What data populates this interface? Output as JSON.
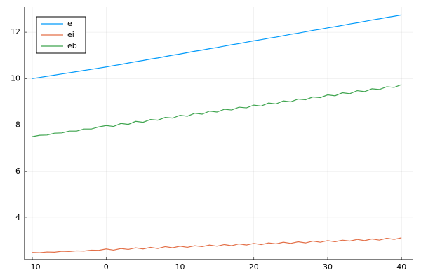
{
  "chart_data": {
    "type": "line",
    "x": [
      -10,
      -9,
      -8,
      -7,
      -6,
      -5,
      -4,
      -3,
      -2,
      -1,
      0,
      1,
      2,
      3,
      4,
      5,
      6,
      7,
      8,
      9,
      10,
      11,
      12,
      13,
      14,
      15,
      16,
      17,
      18,
      19,
      20,
      21,
      22,
      23,
      24,
      25,
      26,
      27,
      28,
      29,
      30,
      31,
      32,
      33,
      34,
      35,
      36,
      37,
      38,
      39,
      40
    ],
    "series": [
      {
        "name": "e",
        "color": "#009afa",
        "values": [
          10.0,
          10.05,
          10.1,
          10.15,
          10.2,
          10.25,
          10.3,
          10.35,
          10.4,
          10.45,
          10.5,
          10.56,
          10.61,
          10.67,
          10.73,
          10.78,
          10.84,
          10.89,
          10.95,
          11.01,
          11.06,
          11.12,
          11.18,
          11.23,
          11.29,
          11.34,
          11.4,
          11.46,
          11.51,
          11.57,
          11.63,
          11.68,
          11.74,
          11.79,
          11.85,
          11.91,
          11.96,
          12.02,
          12.08,
          12.13,
          12.19,
          12.24,
          12.3,
          12.36,
          12.41,
          12.47,
          12.53,
          12.58,
          12.64,
          12.69,
          12.75
        ]
      },
      {
        "name": "ei",
        "color": "#e36f47",
        "values": [
          2.5,
          2.49,
          2.52,
          2.51,
          2.55,
          2.54,
          2.57,
          2.56,
          2.6,
          2.59,
          2.65,
          2.6,
          2.67,
          2.63,
          2.7,
          2.65,
          2.72,
          2.67,
          2.75,
          2.7,
          2.77,
          2.72,
          2.79,
          2.75,
          2.82,
          2.77,
          2.84,
          2.79,
          2.87,
          2.82,
          2.89,
          2.84,
          2.91,
          2.87,
          2.94,
          2.89,
          2.96,
          2.91,
          2.99,
          2.94,
          3.01,
          2.96,
          3.03,
          2.99,
          3.06,
          3.01,
          3.08,
          3.03,
          3.11,
          3.06,
          3.13
        ]
      },
      {
        "name": "eb",
        "color": "#3ea44e",
        "values": [
          7.5,
          7.56,
          7.57,
          7.65,
          7.66,
          7.74,
          7.74,
          7.83,
          7.83,
          7.92,
          7.98,
          7.94,
          8.07,
          8.03,
          8.16,
          8.12,
          8.24,
          8.21,
          8.33,
          8.3,
          8.42,
          8.38,
          8.51,
          8.47,
          8.6,
          8.56,
          8.68,
          8.65,
          8.77,
          8.74,
          8.86,
          8.82,
          8.95,
          8.91,
          9.04,
          9.0,
          9.12,
          9.09,
          9.21,
          9.18,
          9.3,
          9.26,
          9.39,
          9.35,
          9.48,
          9.44,
          9.56,
          9.53,
          9.65,
          9.62,
          9.74
        ]
      }
    ],
    "xlim": [
      -11.05,
      41.5
    ],
    "ylim": [
      2.19,
      13.09
    ],
    "xticks": [
      {
        "value": -10,
        "label": "−10"
      },
      0,
      10,
      20,
      30,
      40
    ],
    "yticks": [
      4,
      6,
      8,
      10,
      12
    ],
    "grid": true,
    "legend": "top-left"
  }
}
